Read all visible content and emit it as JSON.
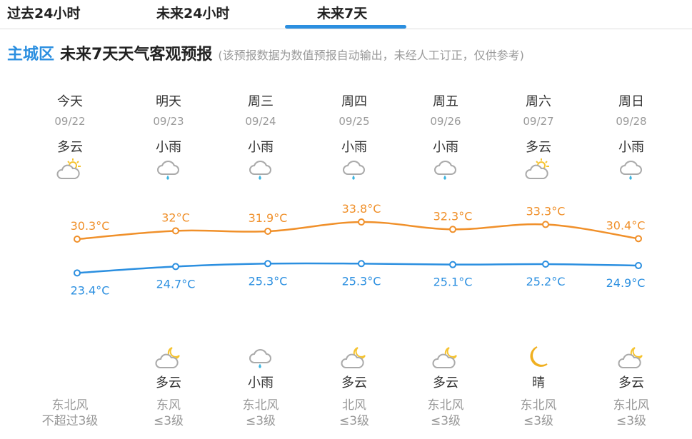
{
  "tabs": [
    {
      "label": "过去24小时"
    },
    {
      "label": "未来24小时"
    },
    {
      "label": "未来7天",
      "active": true
    }
  ],
  "header": {
    "location": "主城区",
    "title": "未来7天天气客观预报",
    "note": "(该预报数据为数值预报自动输出，未经人工订正，仅供参考)"
  },
  "colors": {
    "accent": "#2b8fe0",
    "high": "#f0902a",
    "low": "#2b8fe0"
  },
  "days": [
    {
      "weekday": "今天",
      "date": "09/22",
      "day_weather": "多云",
      "day_icon": "partly-cloudy-day",
      "high": "30.3°C",
      "low": "23.4°C",
      "night_weather": "",
      "night_icon": "",
      "wind_dir": "东北风",
      "wind_level": "不超过3级"
    },
    {
      "weekday": "明天",
      "date": "09/23",
      "day_weather": "小雨",
      "day_icon": "light-rain",
      "high": "32°C",
      "low": "24.7°C",
      "night_weather": "多云",
      "night_icon": "partly-cloudy-night",
      "wind_dir": "东风",
      "wind_level": "≤3级"
    },
    {
      "weekday": "周三",
      "date": "09/24",
      "day_weather": "小雨",
      "day_icon": "light-rain",
      "high": "31.9°C",
      "low": "25.3°C",
      "night_weather": "小雨",
      "night_icon": "light-rain",
      "wind_dir": "东北风",
      "wind_level": "≤3级"
    },
    {
      "weekday": "周四",
      "date": "09/25",
      "day_weather": "小雨",
      "day_icon": "light-rain",
      "high": "33.8°C",
      "low": "25.3°C",
      "night_weather": "多云",
      "night_icon": "partly-cloudy-night",
      "wind_dir": "北风",
      "wind_level": "≤3级"
    },
    {
      "weekday": "周五",
      "date": "09/26",
      "day_weather": "小雨",
      "day_icon": "light-rain",
      "high": "32.3°C",
      "low": "25.1°C",
      "night_weather": "多云",
      "night_icon": "partly-cloudy-night",
      "wind_dir": "东北风",
      "wind_level": "≤3级"
    },
    {
      "weekday": "周六",
      "date": "09/27",
      "day_weather": "多云",
      "day_icon": "partly-cloudy-day",
      "high": "33.3°C",
      "low": "25.2°C",
      "night_weather": "晴",
      "night_icon": "clear-night",
      "wind_dir": "东北风",
      "wind_level": "≤3级"
    },
    {
      "weekday": "周日",
      "date": "09/28",
      "day_weather": "小雨",
      "day_icon": "light-rain",
      "high": "30.4°C",
      "low": "24.9°C",
      "night_weather": "多云",
      "night_icon": "partly-cloudy-night",
      "wind_dir": "东北风",
      "wind_level": "≤3级"
    }
  ],
  "temps": {
    "high": [
      30.3,
      32,
      31.9,
      33.8,
      32.3,
      33.3,
      30.4
    ],
    "low": [
      23.4,
      24.7,
      25.3,
      25.3,
      25.1,
      25.2,
      24.9
    ]
  }
}
